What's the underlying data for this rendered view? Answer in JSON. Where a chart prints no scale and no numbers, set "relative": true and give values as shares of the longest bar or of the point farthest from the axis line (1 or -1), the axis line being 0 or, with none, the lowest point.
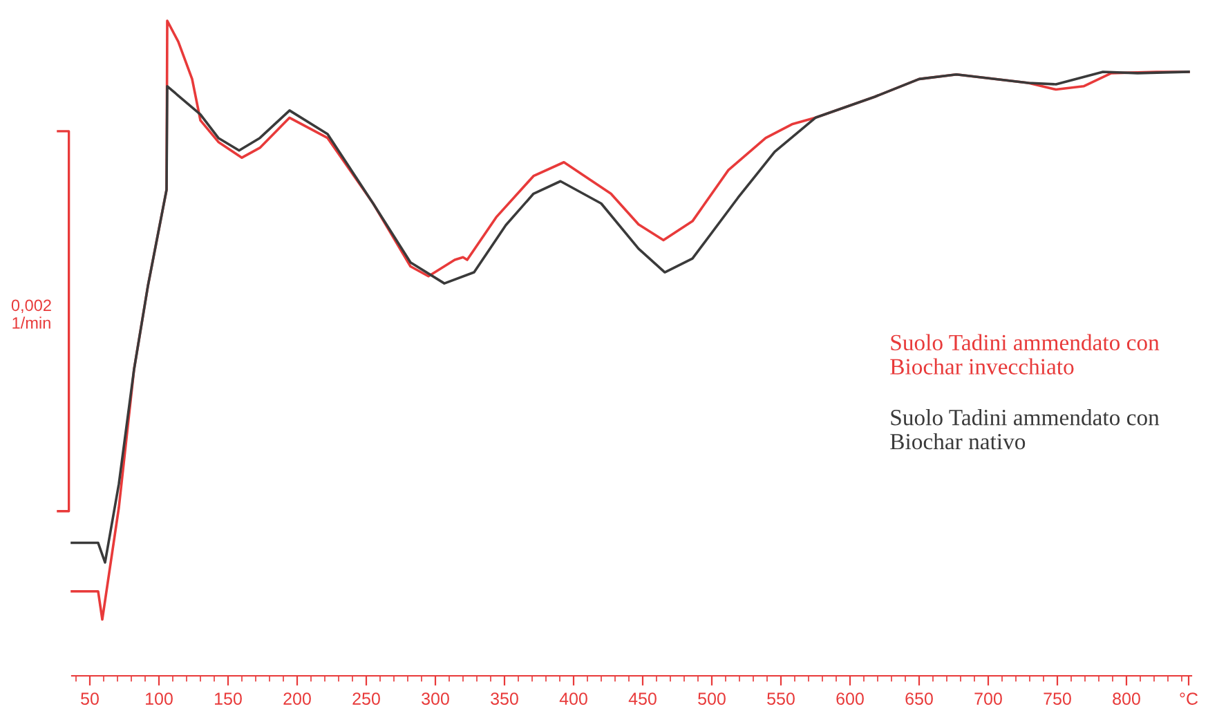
{
  "chart_data": {
    "type": "line",
    "relative": true,
    "legend": "right",
    "line_style": "solid",
    "marker": "none",
    "grid": false,
    "xlim": [
      37,
      847
    ],
    "xticks": [
      50,
      100,
      150,
      200,
      250,
      300,
      350,
      400,
      450,
      500,
      550,
      600,
      650,
      700,
      750,
      800,
      {
        "value": 845,
        "label": "°C"
      }
    ],
    "annotations": [
      "0,002\n1/min"
    ],
    "series": [
      {
        "name": "Suolo Tadini ammendato con\nBiochar invecchiato",
        "color": "#e83a3a",
        "x": [
          37,
          56,
          59,
          71,
          82,
          92,
          105.5,
          106,
          114,
          124,
          130,
          143,
          160,
          173,
          194.5,
          222,
          255,
          282,
          295,
          314,
          320,
          323,
          344,
          371,
          393,
          427,
          447,
          465,
          486,
          512,
          539,
          558,
          575,
          618,
          650,
          677,
          729,
          749,
          769,
          789,
          822,
          845
        ],
        "values": [
          0.129,
          0.129,
          0.086,
          0.257,
          0.468,
          0.595,
          0.742,
          1.0,
          0.968,
          0.911,
          0.848,
          0.815,
          0.791,
          0.806,
          0.852,
          0.821,
          0.721,
          0.625,
          0.61,
          0.635,
          0.639,
          0.635,
          0.7,
          0.763,
          0.784,
          0.736,
          0.689,
          0.665,
          0.694,
          0.772,
          0.821,
          0.842,
          0.852,
          0.884,
          0.911,
          0.918,
          0.905,
          0.895,
          0.9,
          0.92,
          0.922,
          0.922
        ]
      },
      {
        "name": "Suolo Tadini ammendato con\nBiochar nativo",
        "color": "#3a3a3a",
        "x": [
          37,
          56,
          61,
          71,
          82,
          92,
          105.5,
          106,
          121,
          130,
          143,
          158,
          173,
          194.5,
          222,
          255,
          282,
          306.5,
          328,
          351,
          371,
          390.5,
          420,
          447,
          466,
          486,
          519,
          545.5,
          575,
          618,
          650,
          677,
          729,
          749,
          783,
          808,
          845
        ],
        "values": [
          0.203,
          0.203,
          0.173,
          0.293,
          0.468,
          0.595,
          0.742,
          0.9,
          0.873,
          0.857,
          0.821,
          0.802,
          0.821,
          0.863,
          0.827,
          0.721,
          0.631,
          0.599,
          0.616,
          0.688,
          0.736,
          0.755,
          0.721,
          0.652,
          0.616,
          0.637,
          0.73,
          0.8,
          0.852,
          0.884,
          0.911,
          0.918,
          0.905,
          0.903,
          0.922,
          0.92,
          0.922
        ]
      }
    ]
  }
}
